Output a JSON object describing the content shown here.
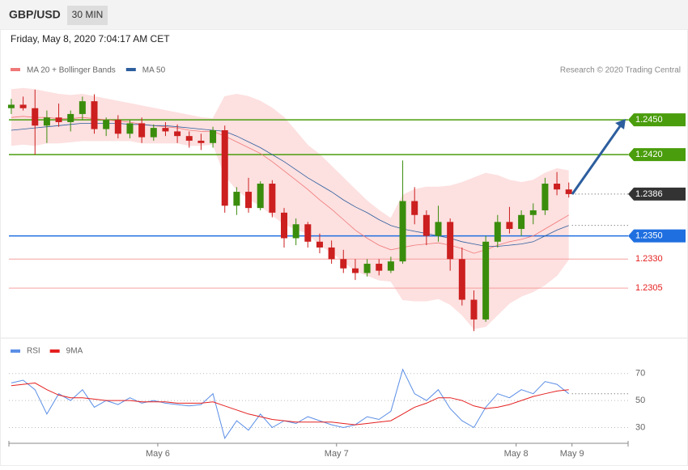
{
  "header": {
    "symbol": "GBP/USD",
    "interval": "30 MIN",
    "timestamp": "Friday, May 8, 2020 7:04:17 AM CET"
  },
  "chart_data": [
    {
      "type": "candlestick",
      "source": "Research © 2020 Trading Central",
      "up_color": "#3a8d0c",
      "down_color": "#cc1f1f",
      "xlim": [
        -0.2,
        52
      ],
      "ylim": [
        1.2264,
        1.2487
      ],
      "open": [
        1.246,
        1.2463,
        1.246,
        1.2445,
        1.2452,
        1.2448,
        1.2455,
        1.2466,
        1.2442,
        1.245,
        1.2438,
        1.2447,
        1.2435,
        1.2443,
        1.244,
        1.2436,
        1.2432,
        1.243,
        1.2441,
        1.2376,
        1.2388,
        1.2374,
        1.2395,
        1.237,
        1.2348,
        1.236,
        1.2345,
        1.234,
        1.233,
        1.2322,
        1.2318,
        1.2326,
        1.232,
        1.2328,
        1.238,
        1.2368,
        1.235,
        1.2362,
        1.233,
        1.2295,
        1.2278,
        1.2345,
        1.2362,
        1.2356,
        1.2368,
        1.2372,
        1.2395,
        1.239
      ],
      "high": [
        1.2468,
        1.247,
        1.2476,
        1.2458,
        1.2464,
        1.2458,
        1.247,
        1.2472,
        1.2452,
        1.2454,
        1.245,
        1.2452,
        1.2446,
        1.2448,
        1.2446,
        1.244,
        1.2438,
        1.2444,
        1.2445,
        1.2392,
        1.24,
        1.2397,
        1.2398,
        1.2374,
        1.2365,
        1.2362,
        1.2352,
        1.2346,
        1.2338,
        1.233,
        1.233,
        1.233,
        1.2332,
        1.2415,
        1.2392,
        1.2372,
        1.2376,
        1.2365,
        1.234,
        1.2303,
        1.235,
        1.2368,
        1.2375,
        1.2372,
        1.2378,
        1.24,
        1.2405,
        1.2396
      ],
      "low": [
        1.2455,
        1.2458,
        1.242,
        1.243,
        1.2444,
        1.244,
        1.245,
        1.2438,
        1.2436,
        1.2434,
        1.2434,
        1.243,
        1.2432,
        1.2436,
        1.243,
        1.2426,
        1.2424,
        1.2426,
        1.237,
        1.2368,
        1.237,
        1.2372,
        1.2366,
        1.234,
        1.2342,
        1.234,
        1.2335,
        1.2326,
        1.2318,
        1.2312,
        1.2315,
        1.2316,
        1.2318,
        1.2326,
        1.236,
        1.2342,
        1.2345,
        1.232,
        1.229,
        1.2268,
        1.2276,
        1.234,
        1.2352,
        1.235,
        1.236,
        1.2368,
        1.2385,
        1.2383
      ],
      "close": [
        1.2463,
        1.246,
        1.2445,
        1.2452,
        1.2448,
        1.2455,
        1.2466,
        1.2442,
        1.245,
        1.2438,
        1.2447,
        1.2435,
        1.2443,
        1.244,
        1.2436,
        1.2432,
        1.243,
        1.2441,
        1.2376,
        1.2388,
        1.2374,
        1.2395,
        1.237,
        1.2348,
        1.236,
        1.2345,
        1.234,
        1.233,
        1.2322,
        1.2318,
        1.2326,
        1.232,
        1.2328,
        1.238,
        1.2368,
        1.235,
        1.2362,
        1.233,
        1.2295,
        1.2278,
        1.2345,
        1.2362,
        1.2356,
        1.2368,
        1.2372,
        1.2395,
        1.239,
        1.2386
      ],
      "series": [
        {
          "name": "MA 20 + Bollinger Bands",
          "color": "#f07878",
          "band_color": "#fde0e0",
          "values": [
            1.2452,
            1.2453,
            1.2452,
            1.2452,
            1.2451,
            1.2451,
            1.2452,
            1.2451,
            1.245,
            1.2449,
            1.2448,
            1.2446,
            1.2445,
            1.2444,
            1.2443,
            1.2441,
            1.244,
            1.244,
            1.2436,
            1.2431,
            1.2426,
            1.2421,
            1.2414,
            1.2406,
            1.2398,
            1.239,
            1.2381,
            1.2373,
            1.2364,
            1.2355,
            1.2348,
            1.2342,
            1.2338,
            1.234,
            1.2342,
            1.2343,
            1.2344,
            1.2342,
            1.2339,
            1.2335,
            1.2338,
            1.2342,
            1.2345,
            1.2347,
            1.235,
            1.2356,
            1.2362,
            1.2368
          ],
          "upper": [
            1.2476,
            1.2477,
            1.2476,
            1.2474,
            1.2472,
            1.2471,
            1.2472,
            1.247,
            1.2468,
            1.2466,
            1.2464,
            1.2462,
            1.246,
            1.2458,
            1.2456,
            1.2454,
            1.2452,
            1.2451,
            1.247,
            1.2472,
            1.247,
            1.2466,
            1.246,
            1.2452,
            1.244,
            1.2428,
            1.242,
            1.241,
            1.24,
            1.239,
            1.238,
            1.2372,
            1.2365,
            1.2385,
            1.239,
            1.2392,
            1.2392,
            1.2393,
            1.2396,
            1.24,
            1.2404,
            1.2402,
            1.2398,
            1.2396,
            1.2398,
            1.2404,
            1.2408,
            1.2406
          ],
          "lower": [
            1.2428,
            1.2429,
            1.2428,
            1.243,
            1.243,
            1.2431,
            1.2432,
            1.2432,
            1.2432,
            1.2432,
            1.2432,
            1.243,
            1.243,
            1.243,
            1.243,
            1.2428,
            1.2428,
            1.2429,
            1.2402,
            1.239,
            1.2382,
            1.2376,
            1.2368,
            1.236,
            1.2356,
            1.2352,
            1.2342,
            1.2336,
            1.2328,
            1.232,
            1.2316,
            1.2312,
            1.2311,
            1.2295,
            1.2294,
            1.2294,
            1.2296,
            1.2291,
            1.2282,
            1.227,
            1.2272,
            1.2282,
            1.2292,
            1.2298,
            1.2302,
            1.2308,
            1.2316,
            1.233
          ]
        },
        {
          "name": "MA 50",
          "color": "#2d5e9e",
          "values": [
            1.2441,
            1.2442,
            1.2443,
            1.2444,
            1.2445,
            1.2446,
            1.2447,
            1.2447,
            1.2447,
            1.2447,
            1.2446,
            1.2446,
            1.2445,
            1.2445,
            1.2444,
            1.2443,
            1.2442,
            1.2441,
            1.244,
            1.2436,
            1.2431,
            1.2426,
            1.242,
            1.2414,
            1.2407,
            1.24,
            1.2394,
            1.2388,
            1.2381,
            1.2375,
            1.237,
            1.2364,
            1.2359,
            1.2356,
            1.2354,
            1.2352,
            1.235,
            1.2348,
            1.2345,
            1.2343,
            1.2341,
            1.2341,
            1.2342,
            1.2343,
            1.2345,
            1.235,
            1.2355,
            1.2359
          ]
        }
      ],
      "levels": [
        {
          "value": 1.245,
          "label": "1.2450",
          "color": "#4a9d0c",
          "tag": true,
          "dotted": false
        },
        {
          "value": 1.242,
          "label": "1.2420",
          "color": "#4a9d0c",
          "tag": true,
          "dotted": false
        },
        {
          "value": 1.2386,
          "label": "1.2386",
          "color": "#333333",
          "tag": true,
          "dotted": true
        },
        {
          "value": 1.235,
          "label": "1.2350",
          "color": "#1f6fe0",
          "tag": true,
          "dotted": false
        },
        {
          "value": 1.233,
          "label": "1.2330",
          "color": "#e52020",
          "tag": false,
          "dotted": false
        },
        {
          "value": 1.2305,
          "label": "1.2305",
          "color": "#e52020",
          "tag": false,
          "dotted": false
        }
      ]
    },
    {
      "type": "line",
      "xlim": [
        -0.2,
        52
      ],
      "ylim": [
        18.3,
        83
      ],
      "yticks": [
        30,
        50,
        70
      ],
      "xticks": [
        {
          "value": 12.35,
          "label": "May 6"
        },
        {
          "value": 27.42,
          "label": "May 7"
        },
        {
          "value": 42.56,
          "label": "May 8"
        },
        {
          "value": 47.27,
          "label": "May 9"
        }
      ],
      "series": [
        {
          "name": "RSI",
          "color": "#5b8ee6",
          "values": [
            63,
            65,
            58,
            40,
            55,
            50,
            58,
            45,
            50,
            47,
            52,
            48,
            50,
            48,
            47,
            46,
            47,
            55,
            22,
            35,
            28,
            40,
            30,
            35,
            33,
            38,
            35,
            32,
            30,
            32,
            38,
            36,
            42,
            73,
            55,
            50,
            58,
            44,
            35,
            30,
            45,
            55,
            52,
            58,
            55,
            64,
            62,
            55
          ]
        },
        {
          "name": "9MA",
          "color": "#e52020",
          "values": [
            61,
            62,
            63,
            58,
            54,
            52,
            52,
            51,
            50,
            50,
            50,
            49,
            49,
            49,
            48,
            48,
            48,
            49,
            46,
            43,
            40,
            38,
            36,
            35,
            34,
            34,
            34,
            34,
            33,
            32,
            33,
            34,
            35,
            40,
            45,
            48,
            52,
            52,
            50,
            46,
            44,
            45,
            47,
            50,
            53,
            55,
            57,
            58
          ]
        }
      ]
    }
  ]
}
